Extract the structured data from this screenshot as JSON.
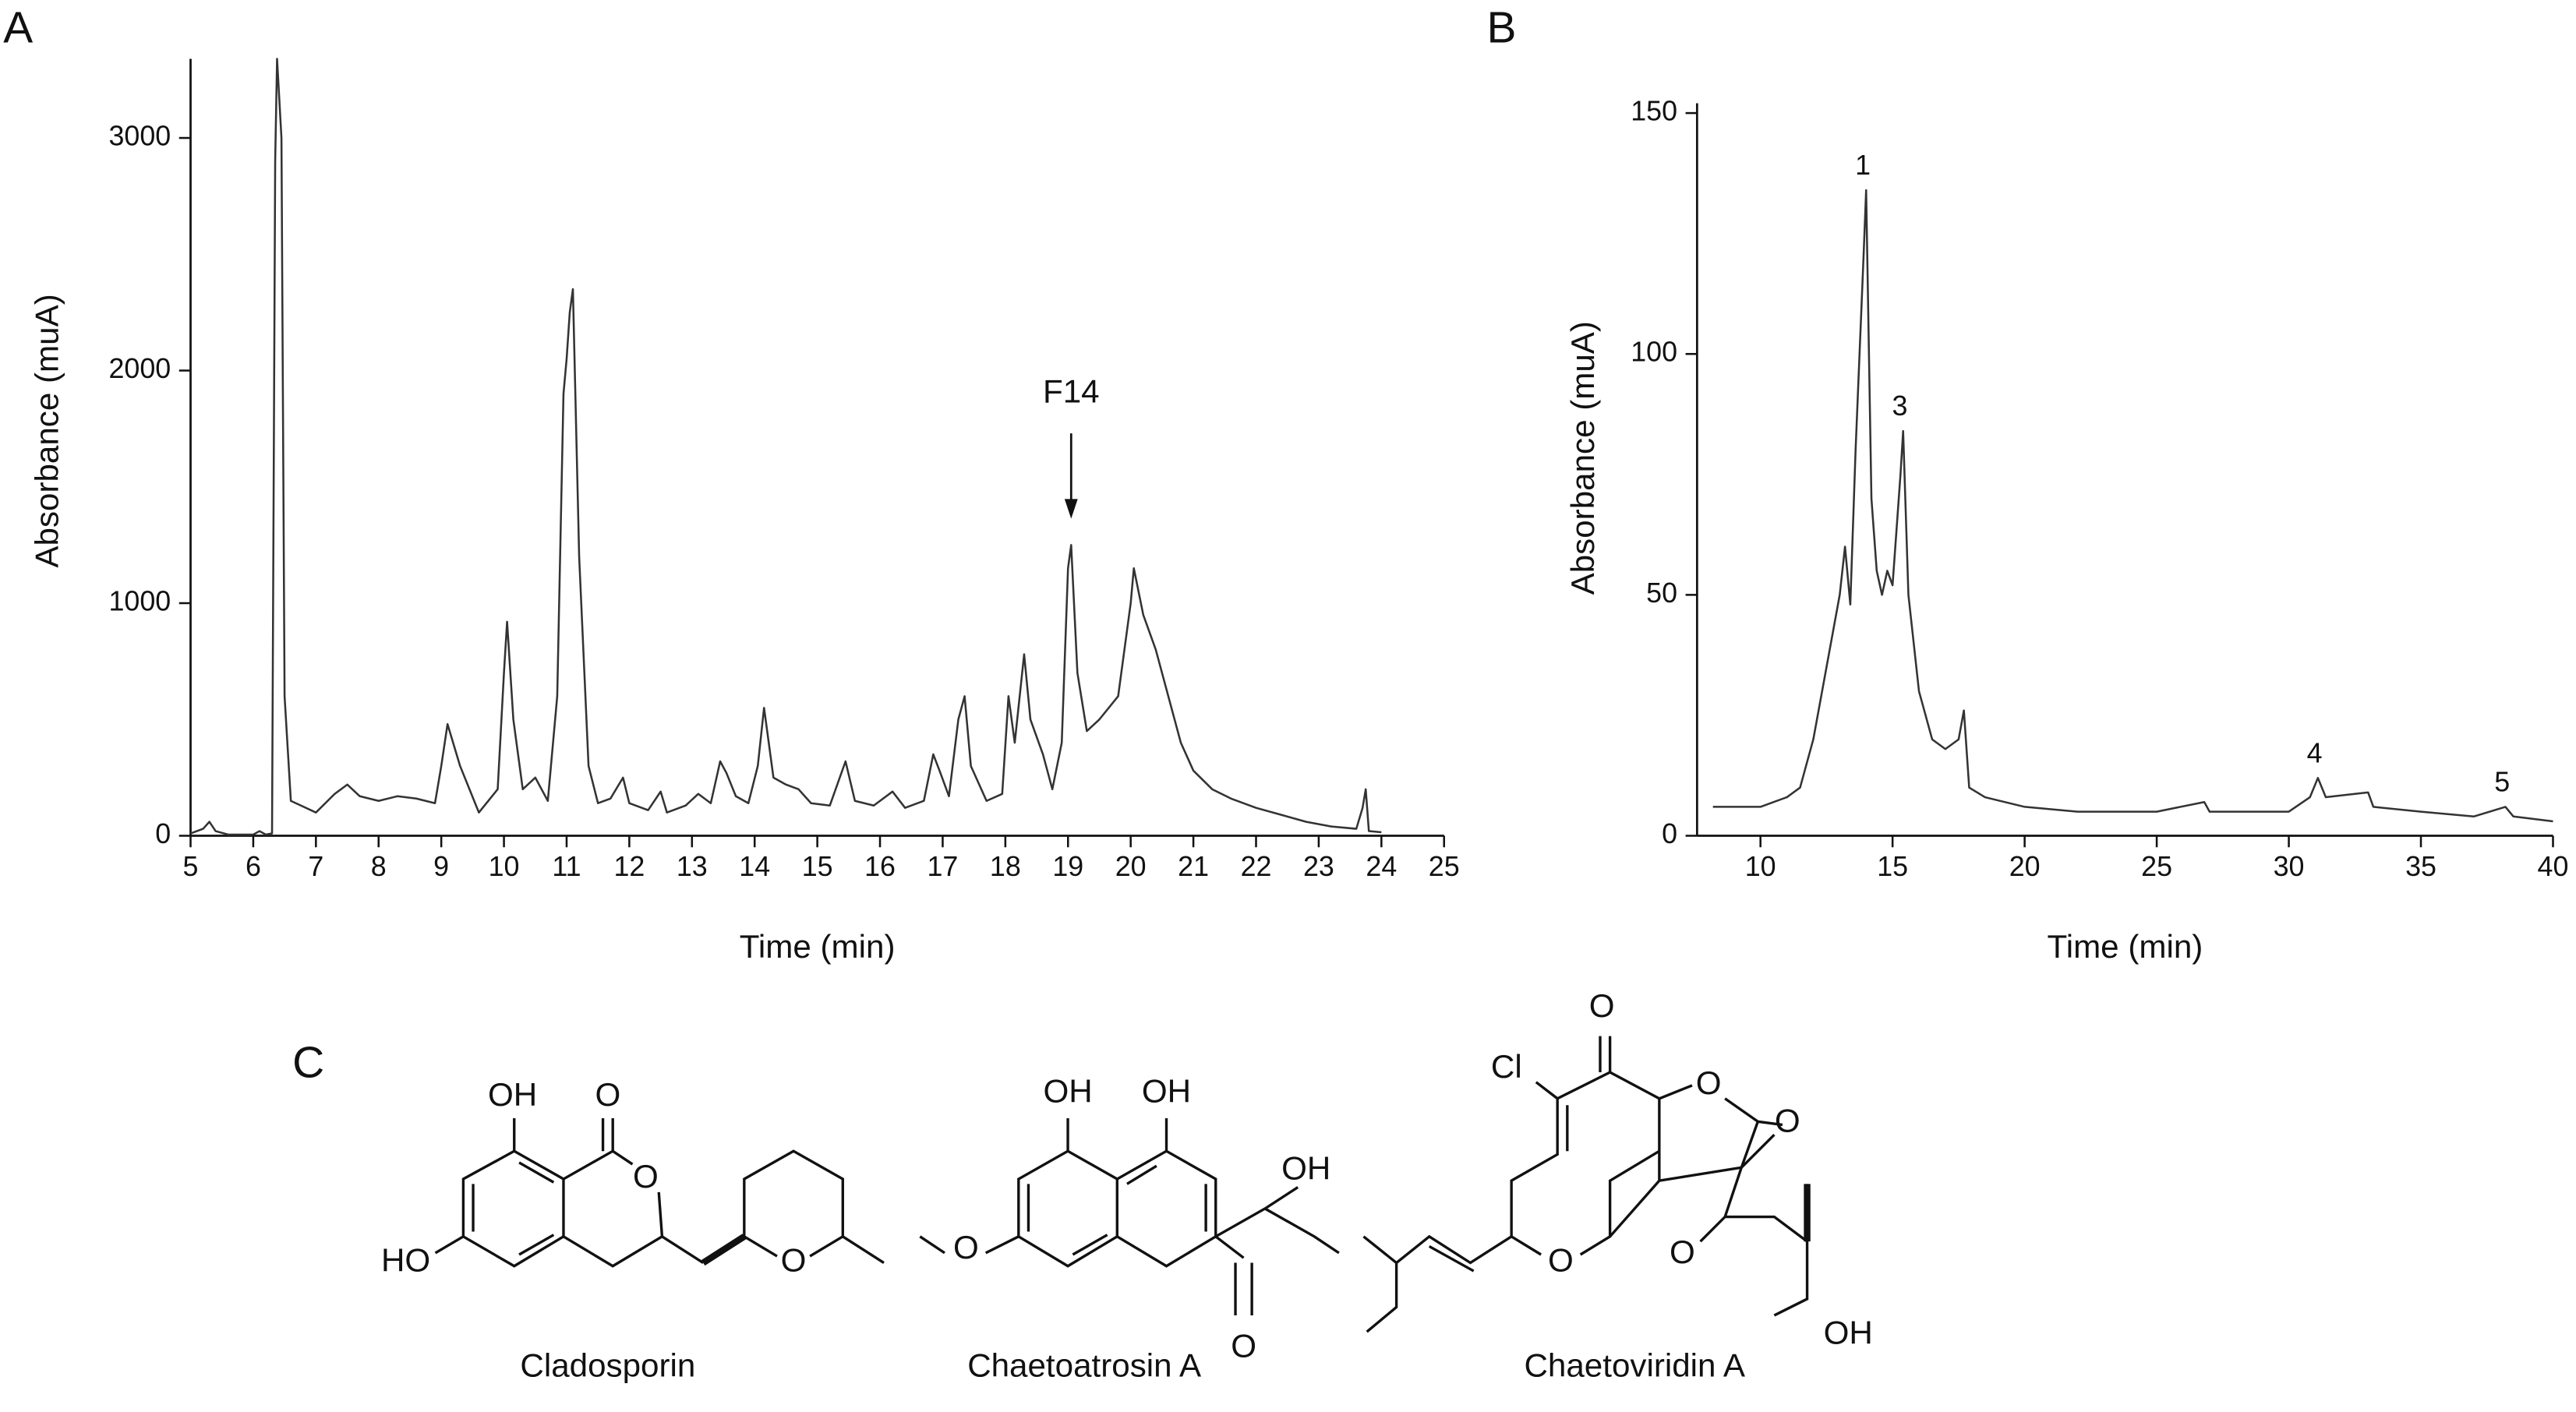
{
  "chart_data": [
    {
      "type": "line",
      "ylabel": "Absorbance (muA)",
      "xlabel": "Time (min)",
      "color": "#333333",
      "xlim": [
        5,
        25
      ],
      "ylim": [
        0,
        3340
      ],
      "xticks": [
        5,
        6,
        7,
        8,
        9,
        10,
        11,
        12,
        13,
        14,
        15,
        16,
        17,
        18,
        19,
        20,
        21,
        22,
        23,
        24,
        25
      ],
      "yticks": [
        0,
        1000,
        2000,
        3000
      ],
      "x": [
        5.0,
        5.2,
        5.3,
        5.4,
        5.6,
        6.0,
        6.1,
        6.2,
        6.3,
        6.35,
        6.38,
        6.45,
        6.5,
        6.6,
        7.0,
        7.3,
        7.5,
        7.7,
        8.0,
        8.3,
        8.6,
        8.9,
        9.0,
        9.1,
        9.3,
        9.6,
        9.9,
        10.0,
        10.05,
        10.15,
        10.3,
        10.5,
        10.7,
        10.85,
        10.95,
        11.0,
        11.05,
        11.1,
        11.2,
        11.35,
        11.5,
        11.7,
        11.9,
        12.0,
        12.3,
        12.5,
        12.6,
        12.9,
        13.1,
        13.3,
        13.45,
        13.55,
        13.7,
        13.9,
        14.05,
        14.15,
        14.3,
        14.5,
        14.7,
        14.9,
        15.2,
        15.45,
        15.6,
        15.9,
        16.2,
        16.4,
        16.7,
        16.85,
        16.95,
        17.1,
        17.25,
        17.35,
        17.45,
        17.7,
        17.95,
        18.05,
        18.15,
        18.3,
        18.4,
        18.6,
        18.75,
        18.9,
        19.0,
        19.05,
        19.15,
        19.3,
        19.5,
        19.8,
        20.0,
        20.05,
        20.2,
        20.4,
        20.6,
        20.8,
        21.0,
        21.3,
        21.6,
        22.0,
        22.4,
        22.8,
        23.2,
        23.6,
        23.7,
        23.75,
        23.8,
        24.0
      ],
      "values": [
        10,
        30,
        60,
        20,
        5,
        5,
        20,
        5,
        10,
        2900,
        3340,
        3000,
        600,
        150,
        100,
        180,
        220,
        170,
        150,
        170,
        160,
        140,
        300,
        480,
        300,
        100,
        200,
        700,
        920,
        500,
        200,
        250,
        150,
        600,
        1900,
        2050,
        2250,
        2350,
        1200,
        300,
        140,
        160,
        250,
        140,
        110,
        190,
        100,
        130,
        180,
        140,
        320,
        270,
        170,
        140,
        300,
        550,
        250,
        220,
        200,
        140,
        130,
        320,
        150,
        130,
        190,
        120,
        150,
        350,
        280,
        170,
        500,
        600,
        300,
        150,
        180,
        600,
        400,
        780,
        500,
        350,
        200,
        400,
        1150,
        1250,
        700,
        450,
        500,
        600,
        1000,
        1150,
        950,
        800,
        600,
        400,
        280,
        200,
        160,
        120,
        90,
        60,
        40,
        30,
        120,
        200,
        20,
        15
      ],
      "annotations": [
        {
          "text": "F14",
          "x": 19.05
        }
      ]
    },
    {
      "type": "line",
      "ylabel": "Absorbance (muA)",
      "xlabel": "Time (min)",
      "color": "#333333",
      "xlim": [
        7.6,
        40
      ],
      "ylim": [
        0,
        150
      ],
      "xticks": [
        10,
        15,
        20,
        25,
        30,
        35,
        40
      ],
      "yticks": [
        0,
        50,
        100,
        150
      ],
      "x": [
        8.2,
        9,
        10,
        11,
        11.5,
        12,
        12.5,
        13,
        13.2,
        13.4,
        13.6,
        13.9,
        14.0,
        14.2,
        14.4,
        14.6,
        14.8,
        15.0,
        15.3,
        15.4,
        15.6,
        16.0,
        16.5,
        17.0,
        17.5,
        17.7,
        17.9,
        18.5,
        20,
        22,
        25,
        26.8,
        27,
        30,
        30.8,
        31.1,
        31.4,
        33,
        33.2,
        35,
        37,
        38.2,
        38.5,
        40
      ],
      "values": [
        6,
        6,
        6,
        8,
        10,
        20,
        35,
        50,
        60,
        48,
        80,
        120,
        134,
        70,
        55,
        50,
        55,
        52,
        75,
        84,
        50,
        30,
        20,
        18,
        20,
        26,
        10,
        8,
        6,
        5,
        5,
        7,
        5,
        5,
        8,
        12,
        8,
        9,
        6,
        5,
        4,
        6,
        4,
        3
      ],
      "annotations": [
        {
          "text": "1",
          "x": 14.0
        },
        {
          "text": "3",
          "x": 15.4
        },
        {
          "text": "4",
          "x": 31.1
        },
        {
          "text": "5",
          "x": 38.2
        }
      ]
    }
  ],
  "panel_labels": [
    "A",
    "B",
    "C"
  ],
  "structures": [
    {
      "name": "Cladosporin",
      "atoms": [
        "OH",
        "O",
        "O",
        "HO",
        "O"
      ]
    },
    {
      "name": "Chaetoatrosin A",
      "atoms": [
        "OH",
        "OH",
        "O",
        "OH",
        "O"
      ]
    },
    {
      "name": "Chaetoviridin A",
      "atoms": [
        "O",
        "Cl",
        "O",
        "O",
        "O",
        "O",
        "OH"
      ]
    }
  ]
}
